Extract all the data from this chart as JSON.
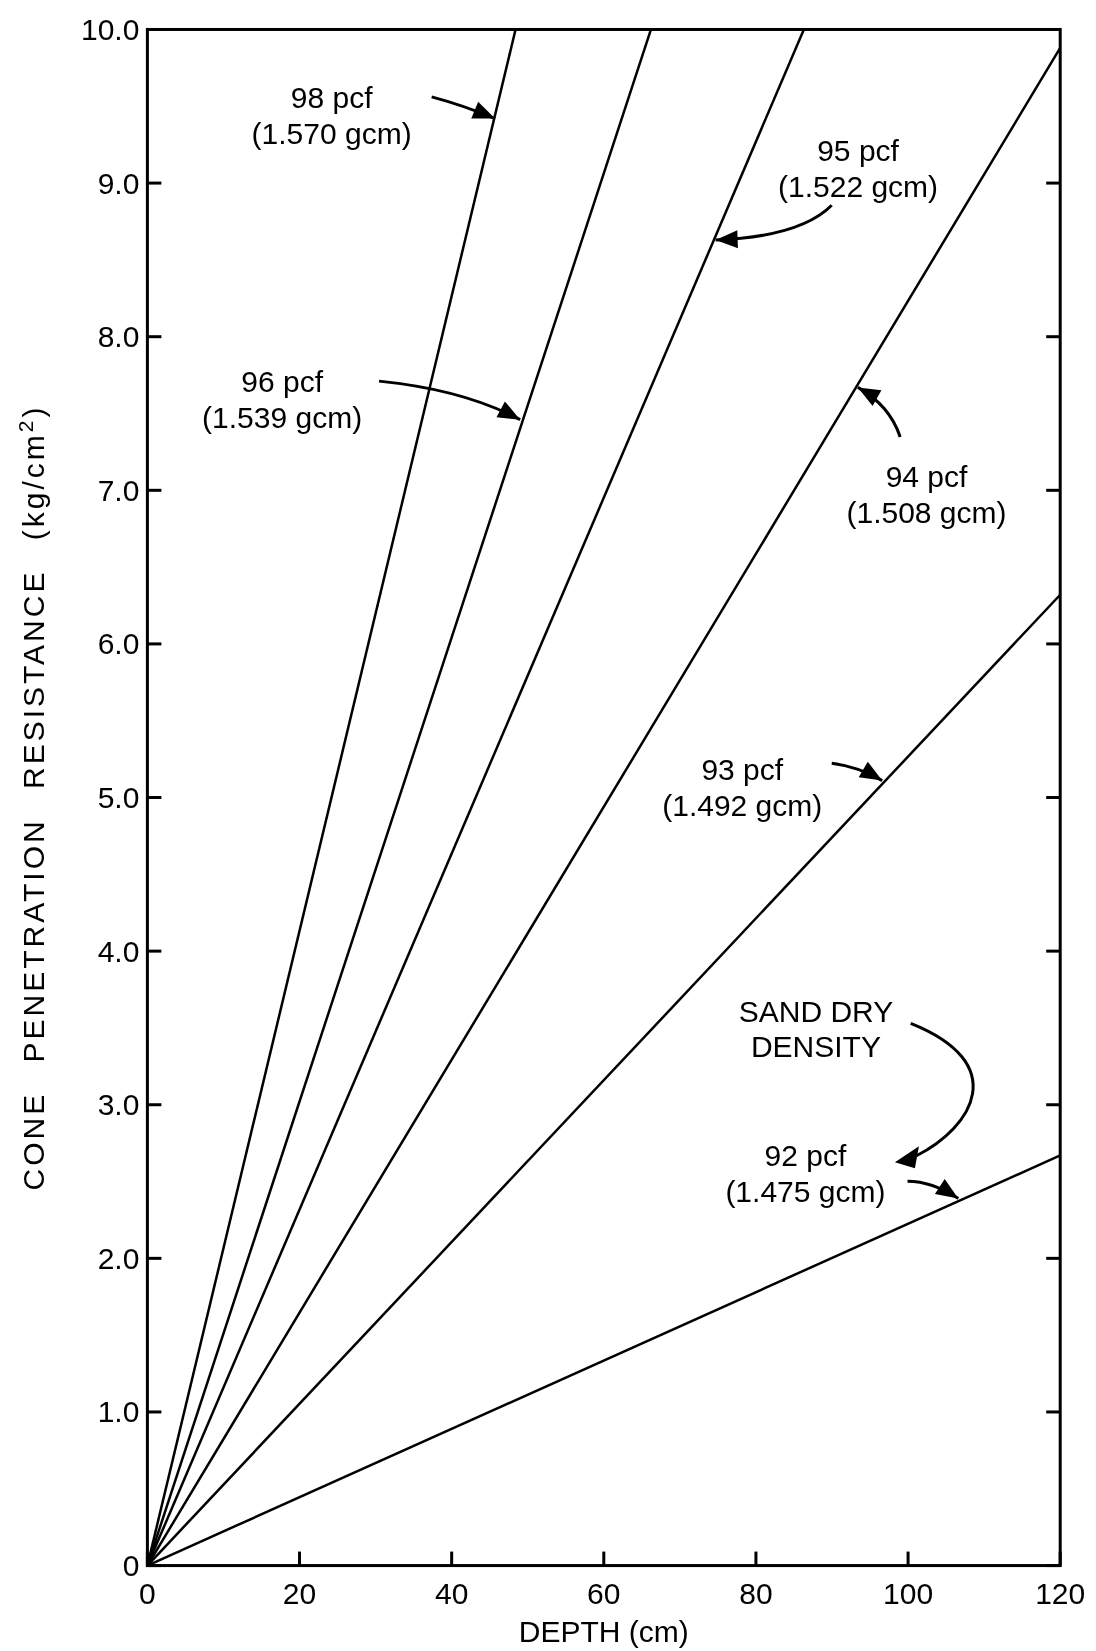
{
  "chart_data": {
    "type": "line",
    "xlabel": "DEPTH (cm)",
    "ylabel": "CONE PENETRATION RESISTANCE (kg/cm$^{2}$)",
    "xlim": [
      0,
      120
    ],
    "ylim": [
      0,
      10
    ],
    "xticks": [
      0,
      20,
      40,
      60,
      80,
      100,
      120
    ],
    "yticks": [
      0,
      {
        "value": 1,
        "label": "1.0"
      },
      {
        "value": 2,
        "label": "2.0"
      },
      {
        "value": 3,
        "label": "3.0"
      },
      {
        "value": 4,
        "label": "4.0"
      },
      {
        "value": 5,
        "label": "5.0"
      },
      {
        "value": 6,
        "label": "6.0"
      },
      {
        "value": 7,
        "label": "7.0"
      },
      {
        "value": 8,
        "label": "8.0"
      },
      {
        "value": 9,
        "label": "9.0"
      },
      {
        "value": 10,
        "label": "10.0"
      }
    ],
    "grid": false,
    "marker": "none",
    "line_style": "solid",
    "series": [
      {
        "color": "#000000",
        "x": [
          0,
          48.4
        ],
        "values": [
          0,
          10
        ]
      },
      {
        "color": "#000000",
        "x": [
          0,
          66.2
        ],
        "values": [
          0,
          10
        ]
      },
      {
        "color": "#000000",
        "x": [
          0,
          86.3
        ],
        "values": [
          0,
          10
        ]
      },
      {
        "color": "#000000",
        "x": [
          0,
          120
        ],
        "values": [
          0,
          9.88
        ]
      },
      {
        "color": "#000000",
        "x": [
          0,
          120
        ],
        "values": [
          0,
          6.32
        ]
      },
      {
        "color": "#000000",
        "x": [
          0,
          120
        ],
        "values": [
          0,
          2.67
        ]
      }
    ],
    "annotations": [
      {
        "text": "98 pcf (1.570 gcm)",
        "x": 45.7,
        "y": 9.42
      },
      {
        "text": "96 pcf (1.539 gcm)",
        "x": 49,
        "y": 7.46
      },
      {
        "text": "95 pcf (1.522 gcm)",
        "x": 74.7,
        "y": 8.63
      },
      {
        "text": "94 pcf (1.508 gcm)",
        "x": 93.4,
        "y": 7.67
      },
      {
        "text": "93 pcf (1.492 gcm)",
        "x": 96.6,
        "y": 5.11
      },
      {
        "text": "92 pcf (1.475 gcm)",
        "x": 106.6,
        "y": 2.39
      },
      "SAND DRY DENSITY"
    ]
  }
}
